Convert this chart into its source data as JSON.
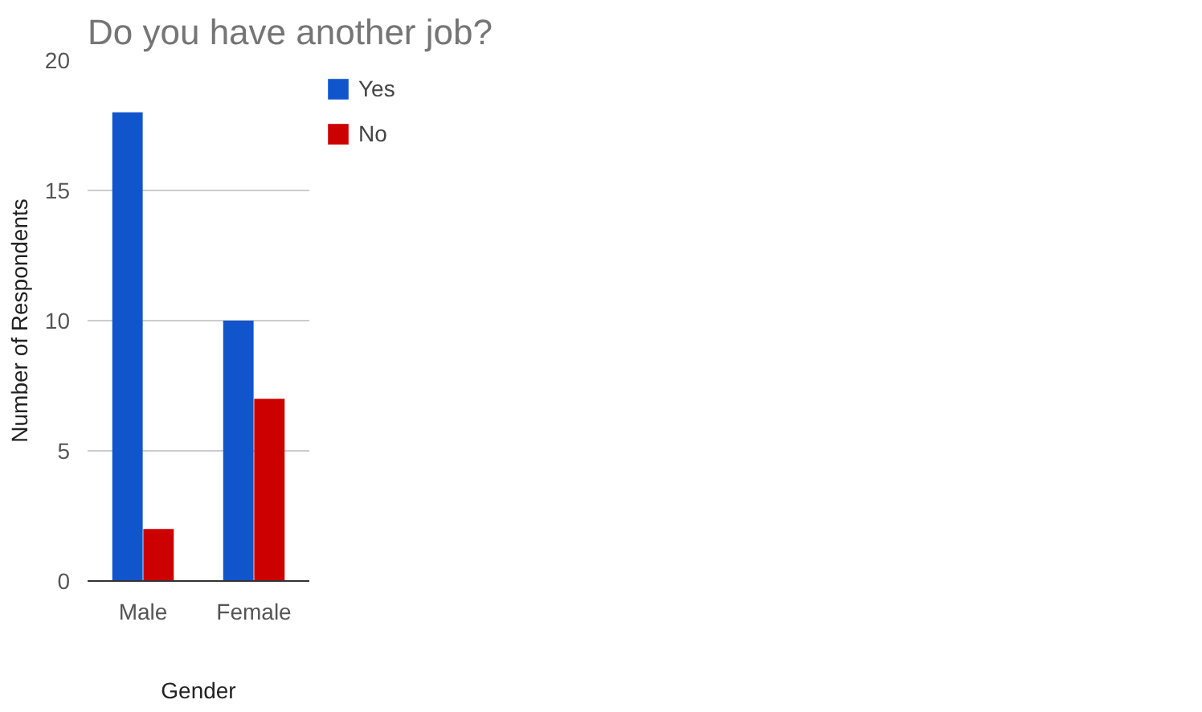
{
  "chart_data": {
    "type": "bar",
    "title": "Do you have another job?",
    "xlabel": "Gender",
    "ylabel": "Number of Respondents",
    "categories": [
      "Male",
      "Female"
    ],
    "series": [
      {
        "name": "Yes",
        "color": "#1155cc",
        "values": [
          18,
          10
        ]
      },
      {
        "name": "No",
        "color": "#cc0000",
        "values": [
          2,
          7
        ]
      }
    ],
    "ylim": [
      0,
      20
    ],
    "yticks": [
      0,
      5,
      10,
      15,
      20
    ],
    "grid": "y",
    "legend": "top right"
  }
}
